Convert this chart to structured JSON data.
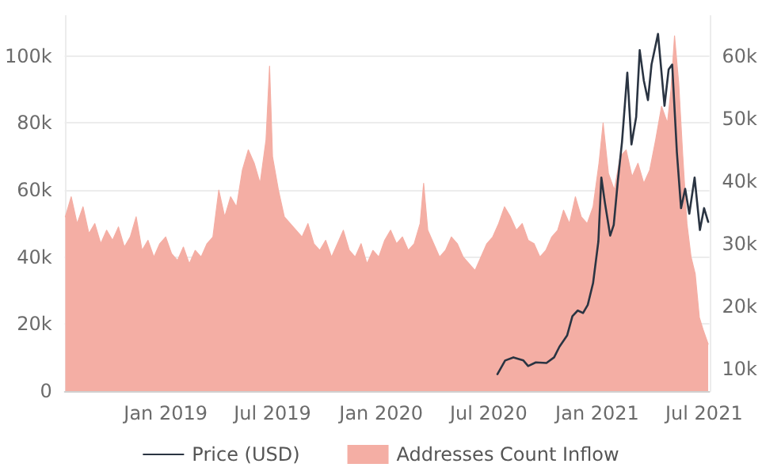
{
  "chart_data": {
    "type": "line",
    "xlim": [
      "2018-07-14",
      "2021-07-10"
    ],
    "xticks": [
      {
        "value": "2019-01-01",
        "label": "Jan 2019"
      },
      {
        "value": "2019-07-01",
        "label": "Jul 2019"
      },
      {
        "value": "2020-01-01",
        "label": "Jan 2020"
      },
      {
        "value": "2020-07-01",
        "label": "Jul 2020"
      },
      {
        "value": "2021-01-01",
        "label": "Jan 2021"
      },
      {
        "value": "2021-07-01",
        "label": "Jul 2021"
      }
    ],
    "ylim": [
      0,
      112000
    ],
    "yticks": [
      0,
      {
        "value": 20000,
        "label": "20k"
      },
      {
        "value": 40000,
        "label": "40k"
      },
      {
        "value": 60000,
        "label": "60k"
      },
      {
        "value": 80000,
        "label": "80k"
      },
      {
        "value": 100000,
        "label": "100k"
      }
    ],
    "y2lim": [
      6400,
      66500
    ],
    "y2ticks": [
      {
        "value": 10000,
        "label": "10k"
      },
      {
        "value": 20000,
        "label": "20k"
      },
      {
        "value": 30000,
        "label": "30k"
      },
      {
        "value": 40000,
        "label": "40k"
      },
      {
        "value": 50000,
        "label": "50k"
      },
      {
        "value": 60000,
        "label": "60k"
      }
    ],
    "grid": "y",
    "legend": "bottom",
    "marker": "none",
    "series": [
      {
        "name": "Price (USD)",
        "axis": "y2",
        "color": "#2a3442",
        "x": [
          "2020-07-16",
          "2020-07-29",
          "2020-08-12",
          "2020-08-29",
          "2020-09-06",
          "2020-09-19",
          "2020-10-07",
          "2020-10-20",
          "2020-10-29",
          "2020-11-11",
          "2020-11-20",
          "2020-11-29",
          "2020-12-08",
          "2020-12-16",
          "2020-12-25",
          "2021-01-03",
          "2021-01-08",
          "2021-01-14",
          "2021-01-23",
          "2021-01-29",
          "2021-02-05",
          "2021-02-12",
          "2021-02-21",
          "2021-02-28",
          "2021-03-08",
          "2021-03-14",
          "2021-03-21",
          "2021-03-28",
          "2021-04-03",
          "2021-04-14",
          "2021-04-25",
          "2021-05-02",
          "2021-05-08",
          "2021-05-16",
          "2021-05-23",
          "2021-05-30",
          "2021-06-06",
          "2021-06-15",
          "2021-06-24",
          "2021-07-01",
          "2021-07-08"
        ],
        "values": [
          9100,
          11300,
          11800,
          11300,
          10400,
          11000,
          10900,
          11800,
          13500,
          15300,
          18400,
          19300,
          18900,
          20200,
          23700,
          30400,
          40600,
          36600,
          31300,
          33000,
          40100,
          46300,
          57400,
          45900,
          50300,
          61000,
          56100,
          53000,
          58700,
          63600,
          52100,
          57900,
          58700,
          44600,
          35700,
          38800,
          34800,
          40600,
          32200,
          35700,
          33500
        ]
      },
      {
        "name": "Addresses Count Inflow",
        "type": "area",
        "color": "#f4aea4",
        "x": [
          "2018-07-15",
          "2018-07-25",
          "2018-08-04",
          "2018-08-14",
          "2018-08-24",
          "2018-09-03",
          "2018-09-13",
          "2018-09-23",
          "2018-10-03",
          "2018-10-13",
          "2018-10-23",
          "2018-11-02",
          "2018-11-12",
          "2018-11-22",
          "2018-12-02",
          "2018-12-12",
          "2018-12-22",
          "2019-01-01",
          "2019-01-11",
          "2019-01-21",
          "2019-01-31",
          "2019-02-10",
          "2019-02-20",
          "2019-03-02",
          "2019-03-12",
          "2019-03-22",
          "2019-04-01",
          "2019-04-11",
          "2019-04-21",
          "2019-05-01",
          "2019-05-11",
          "2019-05-21",
          "2019-05-31",
          "2019-06-10",
          "2019-06-20",
          "2019-06-26",
          "2019-07-01",
          "2019-07-11",
          "2019-07-21",
          "2019-07-31",
          "2019-08-10",
          "2019-08-20",
          "2019-08-30",
          "2019-09-09",
          "2019-09-19",
          "2019-09-29",
          "2019-10-09",
          "2019-10-19",
          "2019-10-29",
          "2019-11-08",
          "2019-11-18",
          "2019-11-28",
          "2019-12-08",
          "2019-12-18",
          "2019-12-28",
          "2020-01-07",
          "2020-01-17",
          "2020-01-27",
          "2020-02-06",
          "2020-02-16",
          "2020-02-26",
          "2020-03-07",
          "2020-03-13",
          "2020-03-20",
          "2020-03-30",
          "2020-04-09",
          "2020-04-19",
          "2020-04-29",
          "2020-05-09",
          "2020-05-19",
          "2020-05-29",
          "2020-06-08",
          "2020-06-18",
          "2020-06-28",
          "2020-07-08",
          "2020-07-18",
          "2020-07-28",
          "2020-08-07",
          "2020-08-17",
          "2020-08-27",
          "2020-09-06",
          "2020-09-16",
          "2020-09-26",
          "2020-10-06",
          "2020-10-16",
          "2020-10-26",
          "2020-11-05",
          "2020-11-15",
          "2020-11-25",
          "2020-12-05",
          "2020-12-15",
          "2020-12-25",
          "2021-01-04",
          "2021-01-11",
          "2021-01-20",
          "2021-01-30",
          "2021-02-09",
          "2021-02-19",
          "2021-03-01",
          "2021-03-11",
          "2021-03-21",
          "2021-03-31",
          "2021-04-10",
          "2021-04-20",
          "2021-04-30",
          "2021-05-06",
          "2021-05-12",
          "2021-05-19",
          "2021-05-26",
          "2021-06-02",
          "2021-06-09",
          "2021-06-16",
          "2021-06-23",
          "2021-06-30",
          "2021-07-08"
        ],
        "values": [
          52000,
          58000,
          50000,
          55000,
          47000,
          50000,
          44000,
          48000,
          45000,
          49000,
          43000,
          46000,
          52000,
          42000,
          45000,
          40000,
          44000,
          46000,
          41000,
          39000,
          43000,
          38000,
          42000,
          40000,
          44000,
          46000,
          60000,
          52000,
          58000,
          55000,
          66000,
          72000,
          68000,
          62000,
          75000,
          97000,
          70000,
          60000,
          52000,
          50000,
          48000,
          46000,
          50000,
          44000,
          42000,
          45000,
          40000,
          44000,
          48000,
          42000,
          40000,
          44000,
          38000,
          42000,
          40000,
          45000,
          48000,
          44000,
          46000,
          42000,
          44000,
          50000,
          62000,
          48000,
          44000,
          40000,
          42000,
          46000,
          44000,
          40000,
          38000,
          36000,
          40000,
          44000,
          46000,
          50000,
          55000,
          52000,
          48000,
          50000,
          45000,
          44000,
          40000,
          42000,
          46000,
          48000,
          54000,
          50000,
          58000,
          52000,
          50000,
          55000,
          68000,
          80000,
          65000,
          60000,
          70000,
          72000,
          64000,
          68000,
          62000,
          66000,
          75000,
          85000,
          80000,
          90000,
          106000,
          92000,
          70000,
          50000,
          40000,
          35000,
          22000,
          18000,
          14000
        ]
      }
    ]
  }
}
